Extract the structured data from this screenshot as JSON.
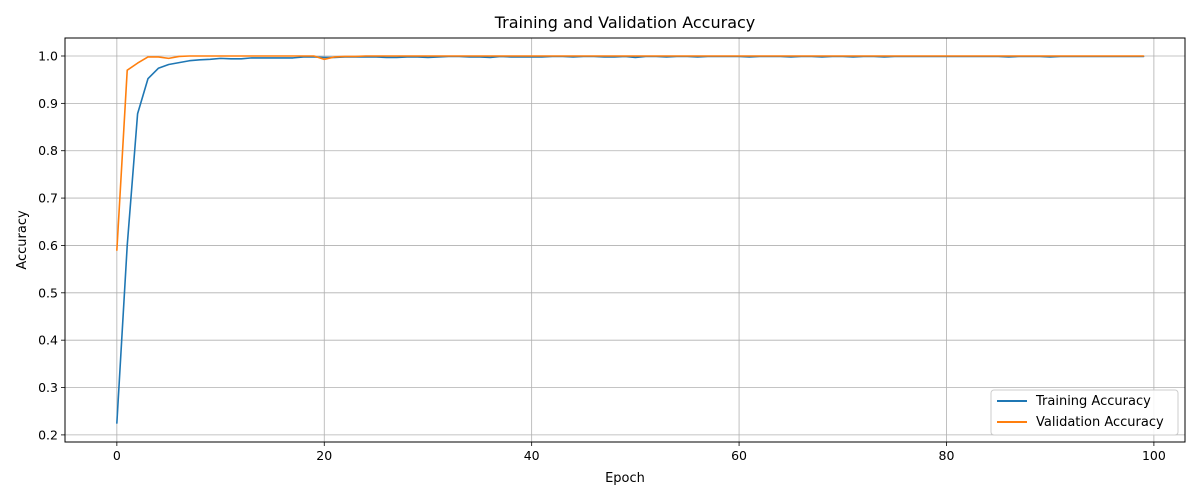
{
  "chart_data": {
    "type": "line",
    "title": "Training and Validation Accuracy",
    "xlabel": "Epoch",
    "ylabel": "Accuracy",
    "xlim": [
      -5,
      103
    ],
    "ylim": [
      0.185,
      1.038
    ],
    "xticks": [
      0,
      20,
      40,
      60,
      80,
      100
    ],
    "yticks": [
      0.2,
      0.3,
      0.4,
      0.5,
      0.6,
      0.7,
      0.8,
      0.9,
      1.0
    ],
    "xtick_labels": [
      "0",
      "20",
      "40",
      "60",
      "80",
      "100"
    ],
    "ytick_labels": [
      "0.2",
      "0.3",
      "0.4",
      "0.5",
      "0.6",
      "0.7",
      "0.8",
      "0.9",
      "1.0"
    ],
    "grid": true,
    "legend_position": "bottom-right",
    "x": [
      0,
      1,
      2,
      3,
      4,
      5,
      6,
      7,
      8,
      9,
      10,
      11,
      12,
      13,
      14,
      15,
      16,
      17,
      18,
      19,
      20,
      21,
      22,
      23,
      24,
      25,
      26,
      27,
      28,
      29,
      30,
      31,
      32,
      33,
      34,
      35,
      36,
      37,
      38,
      39,
      40,
      41,
      42,
      43,
      44,
      45,
      46,
      47,
      48,
      49,
      50,
      51,
      52,
      53,
      54,
      55,
      56,
      57,
      58,
      59,
      60,
      61,
      62,
      63,
      64,
      65,
      66,
      67,
      68,
      69,
      70,
      71,
      72,
      73,
      74,
      75,
      76,
      77,
      78,
      79,
      80,
      81,
      82,
      83,
      84,
      85,
      86,
      87,
      88,
      89,
      90,
      91,
      92,
      93,
      94,
      95,
      96,
      97,
      98,
      99
    ],
    "series": [
      {
        "name": "Training Accuracy",
        "color": "#1f77b4",
        "values": [
          0.225,
          0.6,
          0.878,
          0.952,
          0.974,
          0.982,
          0.986,
          0.99,
          0.992,
          0.993,
          0.995,
          0.994,
          0.994,
          0.996,
          0.996,
          0.996,
          0.996,
          0.996,
          0.998,
          0.998,
          0.997,
          0.997,
          0.998,
          0.998,
          0.998,
          0.998,
          0.997,
          0.997,
          0.998,
          0.998,
          0.997,
          0.998,
          0.999,
          0.999,
          0.998,
          0.998,
          0.997,
          0.999,
          0.998,
          0.998,
          0.998,
          0.998,
          0.999,
          0.999,
          0.998,
          0.999,
          0.999,
          0.998,
          0.998,
          0.999,
          0.997,
          0.999,
          0.999,
          0.998,
          0.999,
          0.999,
          0.998,
          0.999,
          0.999,
          0.999,
          0.999,
          0.998,
          0.999,
          0.999,
          0.999,
          0.998,
          0.999,
          0.999,
          0.998,
          0.999,
          0.999,
          0.998,
          0.999,
          0.999,
          0.998,
          0.999,
          0.999,
          0.999,
          0.999,
          0.999,
          0.999,
          0.999,
          0.999,
          0.999,
          0.999,
          0.999,
          0.998,
          0.999,
          0.999,
          0.999,
          0.998,
          0.999,
          0.999,
          0.999,
          0.999,
          0.999,
          0.999,
          0.999,
          0.999,
          0.999
        ]
      },
      {
        "name": "Validation Accuracy",
        "color": "#ff7f0e",
        "values": [
          0.59,
          0.97,
          0.985,
          0.998,
          0.998,
          0.995,
          0.999,
          1.0,
          1.0,
          1.0,
          1.0,
          1.0,
          1.0,
          1.0,
          1.0,
          1.0,
          1.0,
          1.0,
          1.0,
          1.0,
          0.993,
          0.998,
          0.999,
          0.999,
          1.0,
          1.0,
          1.0,
          1.0,
          1.0,
          1.0,
          1.0,
          1.0,
          1.0,
          1.0,
          1.0,
          1.0,
          1.0,
          1.0,
          1.0,
          1.0,
          1.0,
          1.0,
          1.0,
          1.0,
          1.0,
          1.0,
          1.0,
          1.0,
          1.0,
          1.0,
          1.0,
          1.0,
          1.0,
          1.0,
          1.0,
          1.0,
          1.0,
          1.0,
          1.0,
          1.0,
          1.0,
          1.0,
          1.0,
          1.0,
          1.0,
          1.0,
          1.0,
          1.0,
          1.0,
          1.0,
          1.0,
          1.0,
          1.0,
          1.0,
          1.0,
          1.0,
          1.0,
          1.0,
          1.0,
          1.0,
          1.0,
          1.0,
          1.0,
          1.0,
          1.0,
          1.0,
          1.0,
          1.0,
          1.0,
          1.0,
          1.0,
          1.0,
          1.0,
          1.0,
          1.0,
          1.0,
          1.0,
          1.0,
          1.0,
          1.0
        ]
      }
    ]
  }
}
